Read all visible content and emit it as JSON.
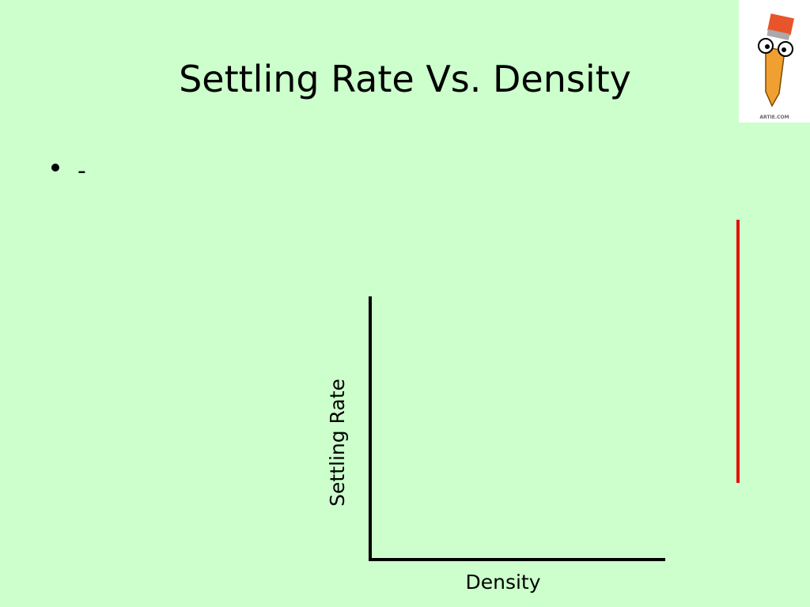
{
  "slide": {
    "title": "Settling Rate Vs. Density",
    "bullets": [
      "-"
    ],
    "diagram": {
      "y_axis_label": "Settling Rate",
      "x_axis_label": "Density"
    },
    "logo": {
      "caption": "ARTIE.COM"
    }
  }
}
